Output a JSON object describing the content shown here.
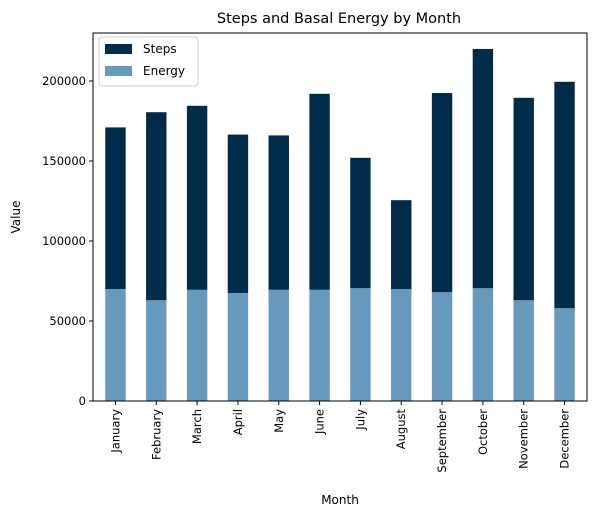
{
  "chart_data": {
    "type": "bar",
    "stacked": true,
    "title": "Steps and Basal Energy by Month",
    "xlabel": "Month",
    "ylabel": "Value",
    "ylim": [
      0,
      230000
    ],
    "yticks": [
      0,
      50000,
      100000,
      150000,
      200000
    ],
    "ytick_labels": [
      "0",
      "50000",
      "100000",
      "150000",
      "200000"
    ],
    "categories": [
      "January",
      "February",
      "March",
      "April",
      "May",
      "June",
      "July",
      "August",
      "September",
      "October",
      "November",
      "December"
    ],
    "series": [
      {
        "name": "Energy",
        "color": "#6699bb",
        "values": [
          70000,
          63000,
          69500,
          67500,
          69500,
          69500,
          70500,
          70000,
          68000,
          70500,
          63000,
          58000
        ]
      },
      {
        "name": "Steps",
        "color": "#002b49",
        "values": [
          101000,
          117500,
          115000,
          99000,
          96500,
          122500,
          81500,
          55500,
          124500,
          149500,
          126500,
          141500
        ]
      }
    ],
    "legend": {
      "position": "top-left",
      "entries": [
        "Steps",
        "Energy"
      ]
    },
    "grid": false
  }
}
